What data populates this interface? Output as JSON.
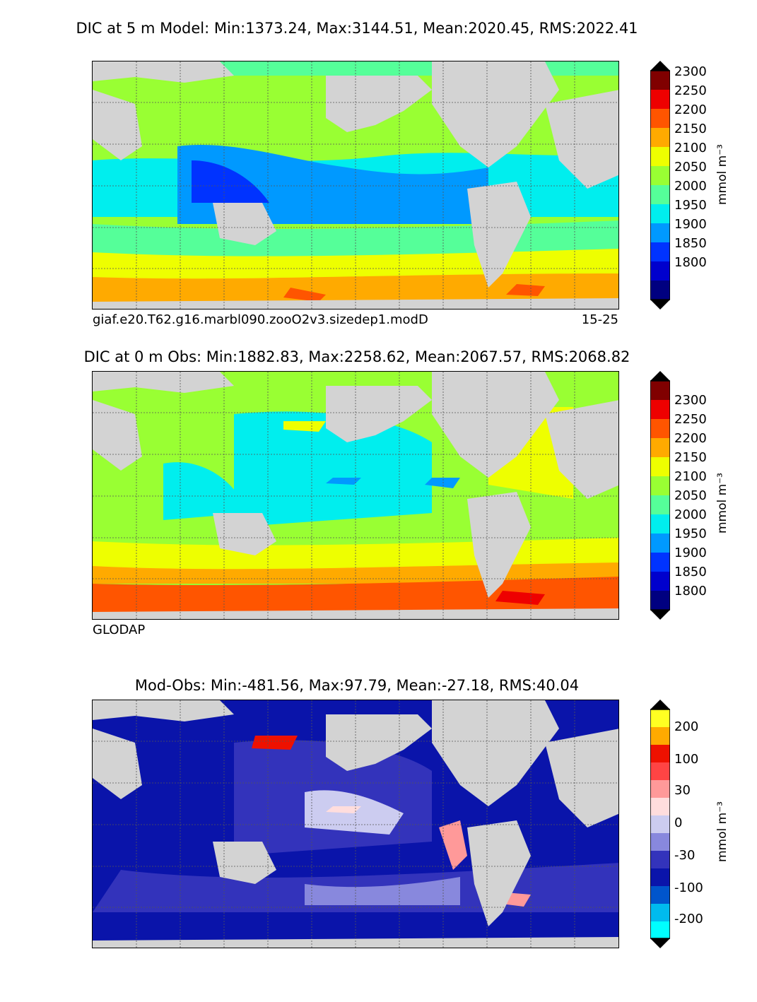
{
  "panels": [
    {
      "title": "DIC at 5 m Model: Min:1373.24, Max:3144.51, Mean:2020.45, RMS:2022.41",
      "caption_left": "giaf.e20.T62.g16.marbl090.zooO2v3.sizedep1.modD",
      "caption_right": "15-25",
      "unit": "mmol m⁻³",
      "colorbar": {
        "labels": [
          "2300",
          "2250",
          "2200",
          "2150",
          "2100",
          "2050",
          "2000",
          "1950",
          "1900",
          "1850",
          "1800"
        ],
        "colors": [
          "#000080",
          "#0000cd",
          "#0033ff",
          "#0099ff",
          "#00eeee",
          "#55ff99",
          "#99ff33",
          "#eeff00",
          "#ffaa00",
          "#ff5500",
          "#ee0000",
          "#800000"
        ]
      }
    },
    {
      "title": "DIC at 0 m Obs: Min:1882.83, Max:2258.62, Mean:2067.57, RMS:2068.82",
      "caption_left": "GLODAP",
      "caption_right": "",
      "unit": "mmol m⁻³",
      "colorbar": {
        "labels": [
          "2300",
          "2250",
          "2200",
          "2150",
          "2100",
          "2050",
          "2000",
          "1950",
          "1900",
          "1850",
          "1800"
        ],
        "colors": [
          "#000080",
          "#0000cd",
          "#0033ff",
          "#0099ff",
          "#00eeee",
          "#55ff99",
          "#99ff33",
          "#eeff00",
          "#ffaa00",
          "#ff5500",
          "#ee0000",
          "#800000"
        ]
      }
    },
    {
      "title": "Mod-Obs: Min:-481.56, Max:97.79, Mean:-27.18, RMS:40.04",
      "caption_left": "",
      "caption_right": "",
      "unit": "mmol m⁻³",
      "colorbar": {
        "labels": [
          "200",
          "100",
          "30",
          "0",
          "-30",
          "-100",
          "-200"
        ],
        "colors": [
          "#00ffff",
          "#00bbee",
          "#0055cc",
          "#0a14aa",
          "#3333bb",
          "#8888dd",
          "#ccccf0",
          "#ffdddd",
          "#ff9999",
          "#ff4444",
          "#ee1100",
          "#ffaa00",
          "#ffff22"
        ]
      }
    }
  ]
}
